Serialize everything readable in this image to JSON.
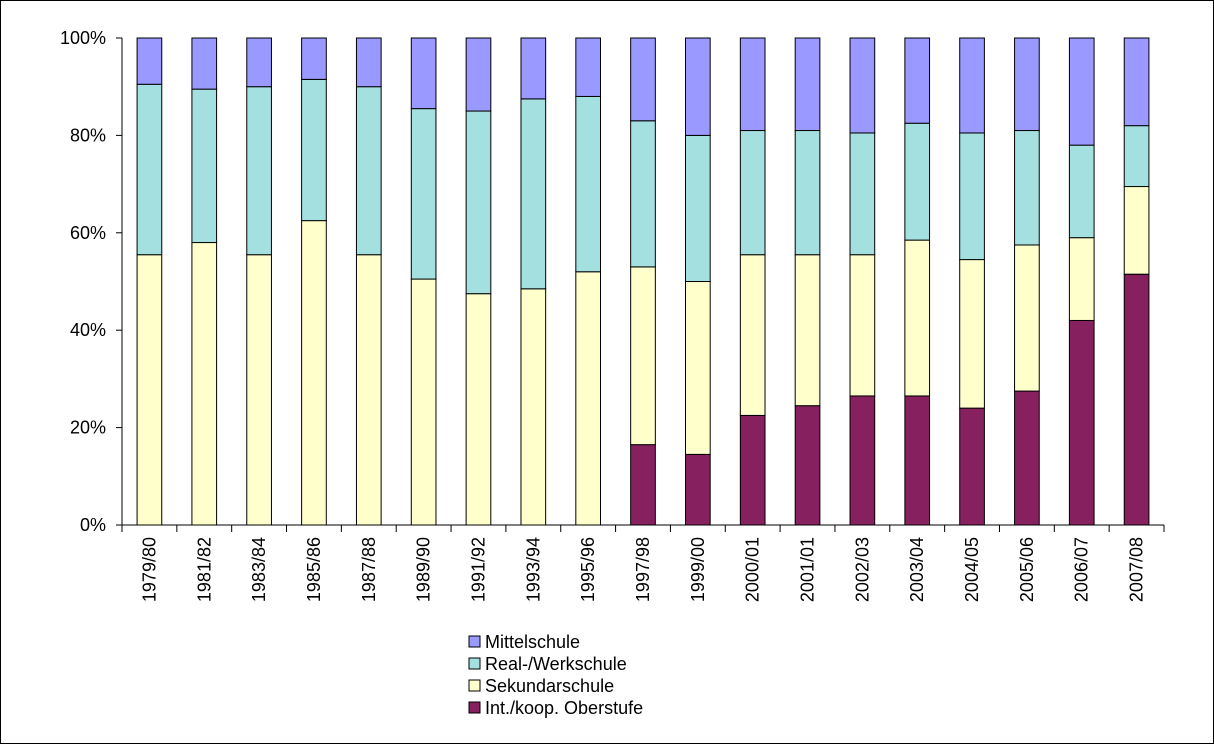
{
  "chart_data": {
    "type": "bar",
    "stacked": true,
    "normalized": true,
    "title": "",
    "xlabel": "",
    "ylabel": "",
    "ylim": [
      0,
      100
    ],
    "y_ticks": [
      "0%",
      "20%",
      "40%",
      "60%",
      "80%",
      "100%"
    ],
    "y_tick_values": [
      0,
      20,
      40,
      60,
      80,
      100
    ],
    "grid": false,
    "legend_position": "bottom",
    "categories": [
      "1979/80",
      "1981/82",
      "1983/84",
      "1985/86",
      "1987/88",
      "1989/90",
      "1991/92",
      "1993/94",
      "1995/96",
      "1997/98",
      "1999/00",
      "2000/01",
      "2001/01",
      "2002/03",
      "2003/04",
      "2004/05",
      "2005/06",
      "2006/07",
      "2007/08"
    ],
    "series": [
      {
        "name": "Int./koop. Oberstufe",
        "color": "#87205f",
        "values": [
          0,
          0,
          0,
          0,
          0,
          0,
          0,
          0,
          0,
          16.5,
          14.5,
          22.5,
          24.5,
          26.5,
          26.5,
          24,
          27.5,
          42,
          51.5
        ]
      },
      {
        "name": "Sekundarschule",
        "color": "#ffffcc",
        "values": [
          55.5,
          58,
          55.5,
          62.5,
          55.5,
          50.5,
          47.5,
          48.5,
          52,
          36.5,
          35.5,
          33,
          31,
          29,
          32,
          30.5,
          30,
          17,
          18
        ]
      },
      {
        "name": "Real-/Werkschule",
        "color": "#a5e0e0",
        "values": [
          35,
          31.5,
          34.5,
          29,
          34.5,
          35,
          37.5,
          39,
          36,
          30,
          30,
          25.5,
          25.5,
          25,
          24,
          26,
          23.5,
          19,
          12.5
        ]
      },
      {
        "name": "Mittelschule",
        "color": "#9999ff",
        "values": [
          9.5,
          10.5,
          10,
          8.5,
          10,
          14.5,
          15,
          12.5,
          12,
          17,
          20,
          19,
          19,
          19.5,
          17.5,
          19.5,
          19,
          22,
          18
        ]
      }
    ]
  }
}
